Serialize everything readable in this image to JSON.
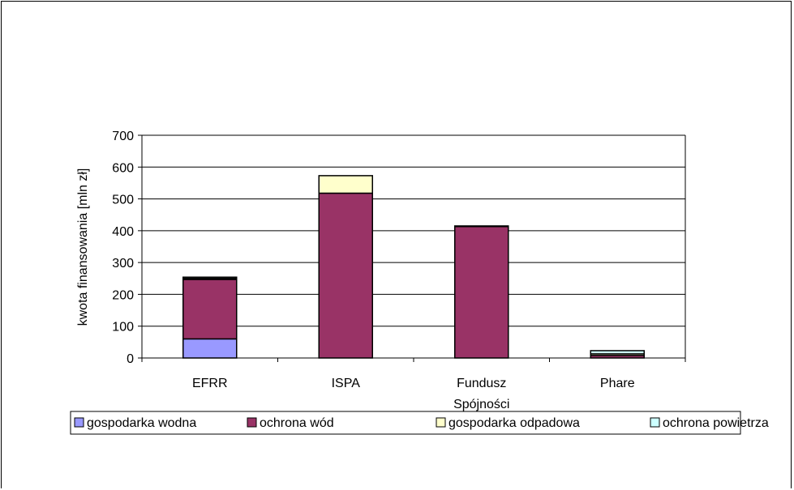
{
  "chart_data": {
    "type": "bar",
    "stacked": true,
    "categories": [
      "EFRR",
      "ISPA",
      "Fundusz Spójności",
      "Phare"
    ],
    "series": [
      {
        "name": "gospodarka wodna",
        "color": "#9999ff",
        "values": [
          60,
          0,
          0,
          0
        ]
      },
      {
        "name": "ochrona wód",
        "color": "#993366",
        "values": [
          187,
          518,
          413,
          8
        ]
      },
      {
        "name": "gospodarka odpadowa",
        "color": "#ffffcc",
        "values": [
          3,
          55,
          0,
          5
        ]
      },
      {
        "name": "ochrona powietrza",
        "color": "#ccffff",
        "values": [
          4,
          0,
          2,
          10
        ]
      }
    ],
    "ylabel": "kwota finansowania [mln zł]",
    "ylim": [
      0,
      700
    ],
    "yticks": [
      0,
      100,
      200,
      300,
      400,
      500,
      600,
      700
    ],
    "grid": true,
    "legend_position": "bottom"
  }
}
